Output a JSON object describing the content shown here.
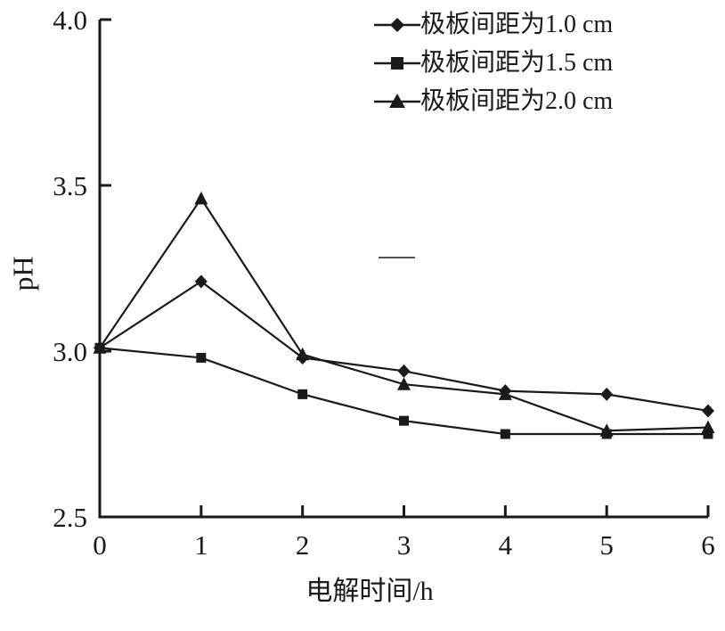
{
  "chart_data": {
    "type": "line",
    "title": "",
    "xlabel": "电解时间/h",
    "ylabel": "pH",
    "x": [
      0,
      1,
      2,
      3,
      4,
      5,
      6
    ],
    "xlim": [
      0,
      6
    ],
    "ylim": [
      2.5,
      4.0
    ],
    "xtick_labels": [
      "0",
      "1",
      "2",
      "3",
      "4",
      "5",
      "6"
    ],
    "xtick_values": [
      0,
      1,
      2,
      3,
      4,
      5,
      6
    ],
    "ytick_labels": [
      "2.5",
      "3.0",
      "3.5",
      "4.0"
    ],
    "ytick_values": [
      2.5,
      3.0,
      3.5,
      4.0
    ],
    "grid": false,
    "legend_position": "top-right",
    "line_color": "#1a1a1a",
    "series": [
      {
        "name": "极板间距为1.0 cm",
        "marker": "diamond",
        "values": [
          3.01,
          3.21,
          2.98,
          2.94,
          2.88,
          2.87,
          2.82
        ]
      },
      {
        "name": "极板间距为1.5 cm",
        "marker": "square",
        "values": [
          3.01,
          2.98,
          2.87,
          2.79,
          2.75,
          2.75,
          2.75
        ]
      },
      {
        "name": "极板间距为2.0 cm",
        "marker": "triangle",
        "values": [
          3.01,
          3.46,
          2.99,
          2.9,
          2.87,
          2.76,
          2.77
        ]
      }
    ]
  }
}
